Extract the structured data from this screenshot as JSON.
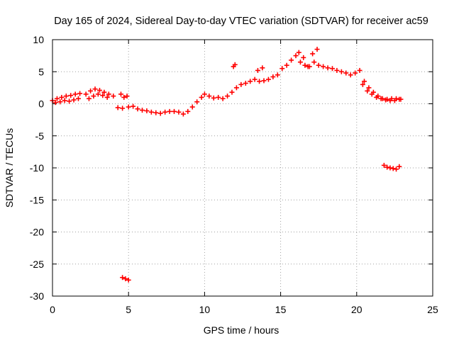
{
  "chart_data": {
    "type": "scatter",
    "title": "Day 165 of 2024, Sidereal Day-to-day VTEC variation (SDTVAR) for receiver ac59",
    "xlabel": "GPS time / hours",
    "ylabel": "SDTVAR / TECUs",
    "xlim": [
      0,
      25
    ],
    "ylim": [
      -30,
      10
    ],
    "xticks": [
      "0",
      "5",
      "10",
      "15",
      "20",
      "25"
    ],
    "yticks": [
      "10",
      "5",
      "0",
      "-5",
      "-10",
      "-15",
      "-20",
      "-25",
      "-30"
    ],
    "grid": true,
    "legend": "none",
    "marker": "plus",
    "color": "#ff0000",
    "series": [
      {
        "name": "SDTVAR",
        "x": [
          0.0,
          0.3,
          0.6,
          0.9,
          1.2,
          1.5,
          1.8,
          2.2,
          2.5,
          2.8,
          3.1,
          3.4,
          3.7,
          4.0,
          4.3,
          4.6,
          5.0,
          5.3,
          5.6,
          5.9,
          6.2,
          6.5,
          6.8,
          7.1,
          7.4,
          7.7,
          8.0,
          8.3,
          8.6,
          8.9,
          9.2,
          9.5,
          9.8,
          10.0,
          10.3,
          10.6,
          10.9,
          11.2,
          11.5,
          11.8,
          12.1,
          12.4,
          12.7,
          13.0,
          13.3,
          13.6,
          13.9,
          14.2,
          14.5,
          14.8,
          15.1,
          15.4,
          15.7,
          16.0,
          16.3,
          16.6,
          16.9,
          17.2,
          17.5,
          17.8,
          18.1,
          18.4,
          18.7,
          19.0,
          19.3,
          19.6,
          19.9,
          20.2,
          20.5,
          20.8,
          21.1,
          21.4,
          21.7,
          22.0,
          22.3,
          22.6,
          22.9,
          0.2,
          0.5,
          0.8,
          1.1,
          1.4,
          1.7,
          2.4,
          2.7,
          3.0,
          3.3,
          3.6,
          4.5,
          4.7,
          4.9,
          11.9,
          12.0,
          13.5,
          13.8,
          16.2,
          16.5,
          16.8,
          17.1,
          17.4,
          20.4,
          20.7,
          21.0,
          21.3,
          21.6,
          21.9,
          22.2,
          22.5,
          22.8,
          21.8,
          22.0,
          22.2,
          22.4,
          22.6,
          22.8,
          4.6,
          4.8,
          5.0
        ],
        "y": [
          0.5,
          0.8,
          1.0,
          1.2,
          1.3,
          1.5,
          1.6,
          1.5,
          2.0,
          2.3,
          2.1,
          1.8,
          1.5,
          1.2,
          -0.6,
          -0.7,
          -0.5,
          -0.4,
          -0.8,
          -1.0,
          -1.1,
          -1.3,
          -1.4,
          -1.5,
          -1.3,
          -1.2,
          -1.2,
          -1.3,
          -1.6,
          -1.2,
          -0.5,
          0.3,
          1.0,
          1.5,
          1.2,
          0.9,
          1.0,
          0.8,
          1.2,
          1.8,
          2.5,
          3.0,
          3.2,
          3.5,
          3.8,
          3.5,
          3.6,
          3.8,
          4.2,
          4.5,
          5.5,
          6.0,
          6.8,
          7.5,
          6.5,
          6.0,
          5.8,
          6.5,
          6.0,
          5.8,
          5.6,
          5.5,
          5.2,
          5.0,
          4.8,
          4.5,
          4.8,
          5.2,
          3.5,
          2.5,
          1.8,
          1.2,
          0.8,
          0.7,
          0.8,
          0.8,
          0.7,
          0.2,
          0.3,
          0.5,
          0.4,
          0.6,
          0.8,
          0.8,
          1.2,
          1.5,
          1.3,
          1.0,
          1.5,
          1.0,
          1.2,
          5.8,
          6.1,
          5.2,
          5.6,
          8.0,
          7.2,
          5.8,
          7.8,
          8.5,
          3.0,
          2.0,
          1.5,
          1.0,
          0.8,
          0.6,
          0.5,
          0.5,
          0.7,
          -9.6,
          -9.9,
          -10.0,
          -10.1,
          -10.2,
          -9.8,
          -27.1,
          -27.3,
          -27.5
        ]
      }
    ]
  }
}
